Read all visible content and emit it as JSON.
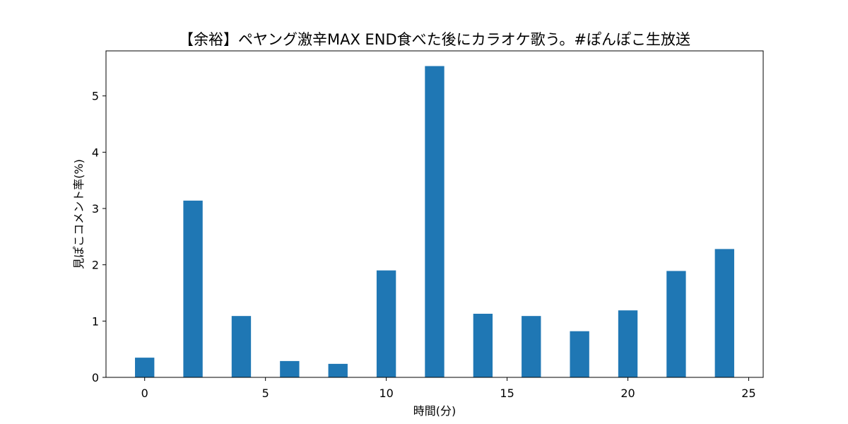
{
  "chart_data": {
    "type": "bar",
    "title": "【余裕】ペヤング激辛MAX END食べた後にカラオケ歌う。#ぽんぽこ生放送",
    "xlabel": "時間(分)",
    "ylabel": "見ぽこコメント率(%)",
    "x": [
      0,
      2,
      4,
      6,
      8,
      10,
      12,
      14,
      16,
      18,
      20,
      22,
      24
    ],
    "values": [
      0.35,
      3.14,
      1.09,
      0.29,
      0.24,
      1.9,
      5.53,
      1.13,
      1.09,
      0.82,
      1.19,
      1.89,
      2.28
    ],
    "bar_width": 0.8,
    "xlim": [
      -1.6,
      25.6
    ],
    "ylim": [
      0,
      5.8
    ],
    "xticks": [
      0,
      5,
      10,
      15,
      20,
      25
    ],
    "yticks": [
      0,
      1,
      2,
      3,
      4,
      5
    ],
    "grid": false,
    "color": "#1f77b4"
  }
}
